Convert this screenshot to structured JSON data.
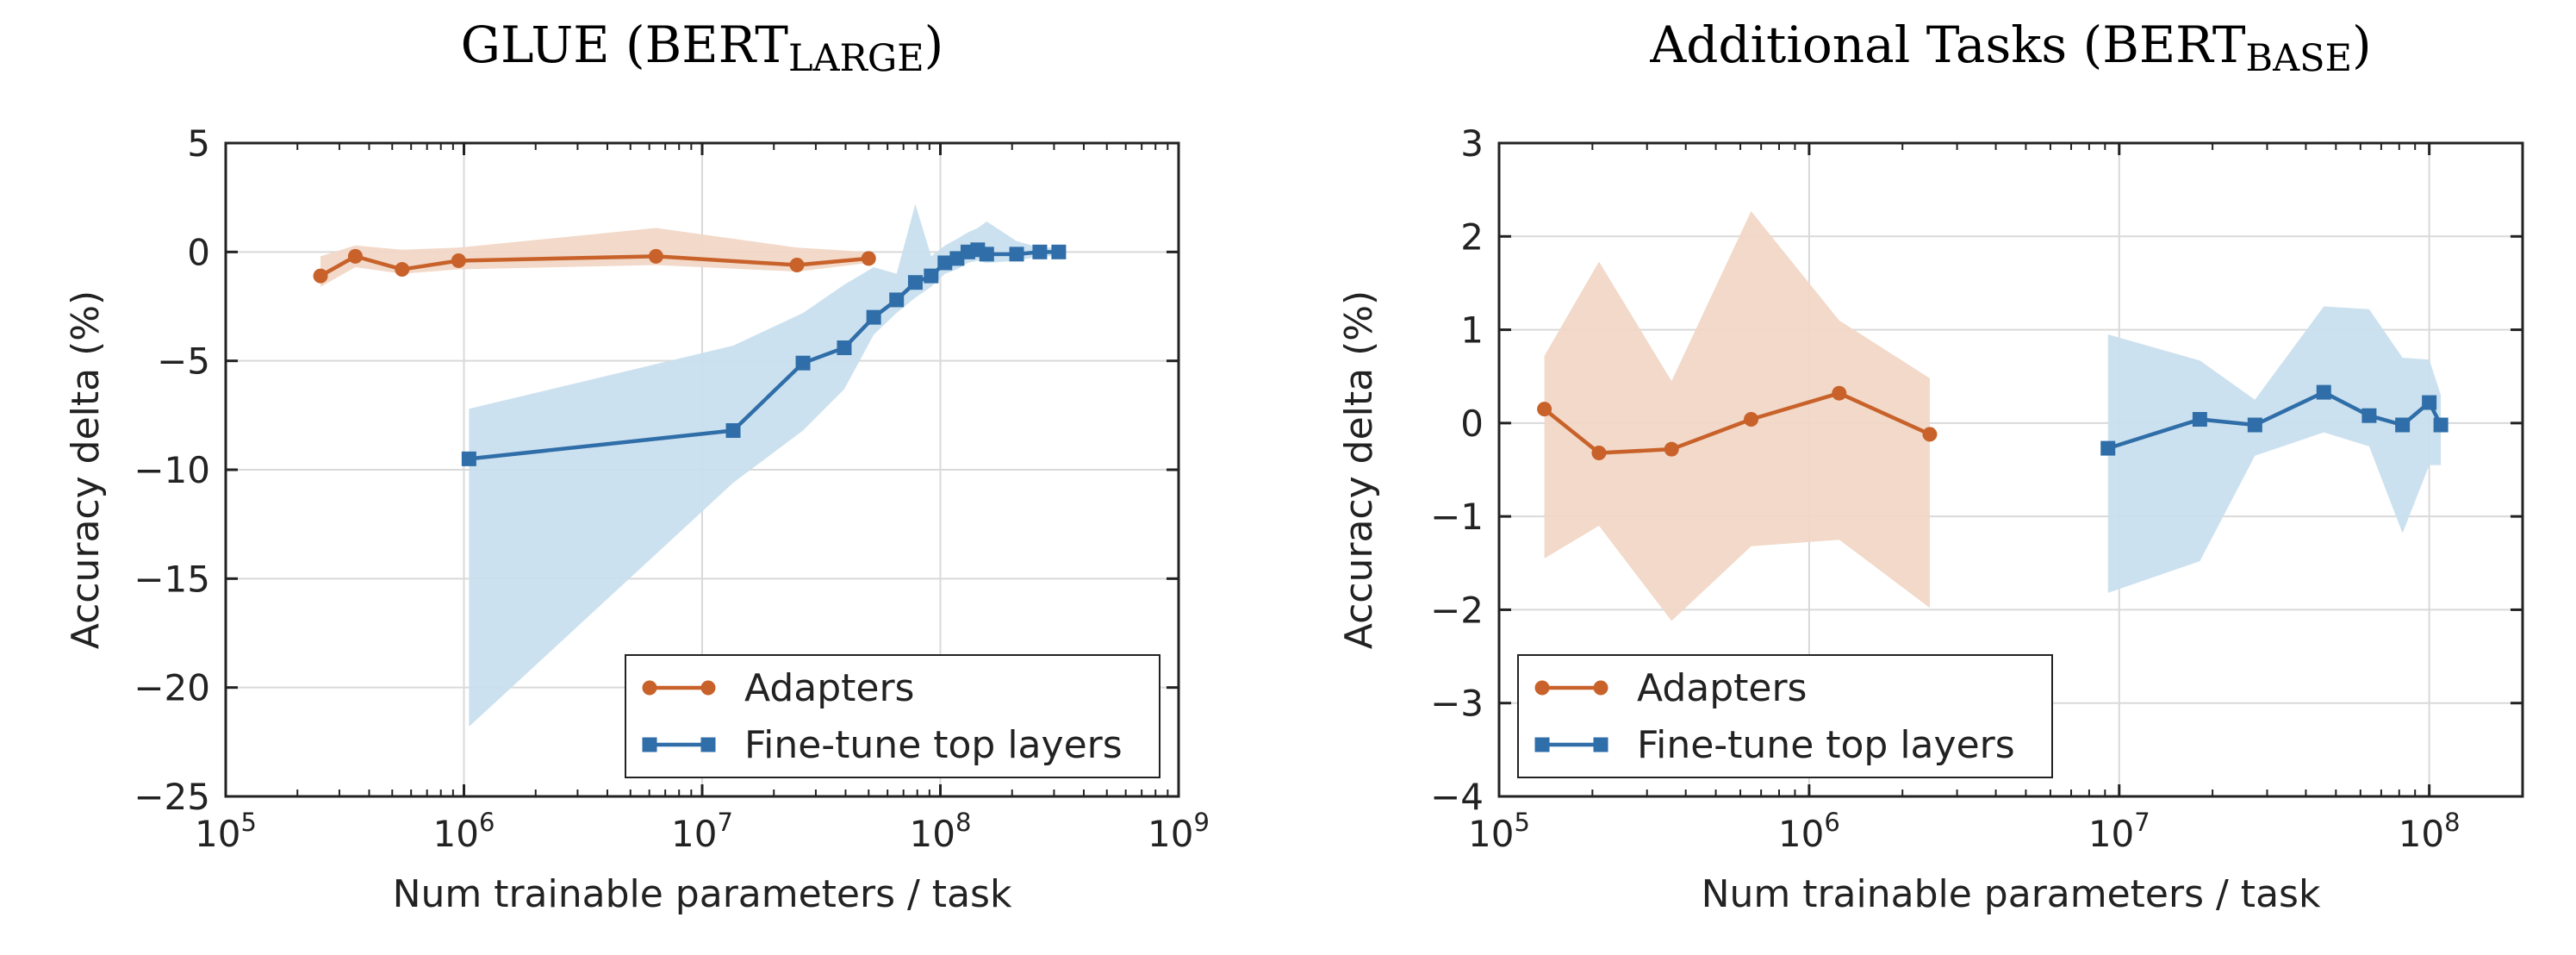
{
  "colors": {
    "adapters": "#c8622a",
    "finetune": "#2f6ea8",
    "adapters_band": "#f1d7c6",
    "finetune_band": "#c9dfee"
  },
  "chart_data": [
    {
      "type": "line",
      "title": "GLUE (BERT",
      "title_subscript": "LARGE",
      "title_suffix": ")",
      "xlabel": "Num trainable parameters / task",
      "ylabel": "Accuracy delta (%)",
      "x_scale": "log",
      "xlim": [
        100000,
        1000000000
      ],
      "ylim": [
        -25,
        5
      ],
      "x_ticks": [
        {
          "value": 100000,
          "base": "10",
          "exp": "5"
        },
        {
          "value": 1000000,
          "base": "10",
          "exp": "6"
        },
        {
          "value": 10000000,
          "base": "10",
          "exp": "7"
        },
        {
          "value": 100000000,
          "base": "10",
          "exp": "8"
        },
        {
          "value": 1000000000,
          "base": "10",
          "exp": "9"
        }
      ],
      "y_ticks": [
        {
          "value": 5,
          "label": "5"
        },
        {
          "value": 0,
          "label": "0"
        },
        {
          "value": -5,
          "label": "−5"
        },
        {
          "value": -10,
          "label": "−10"
        },
        {
          "value": -15,
          "label": "−15"
        },
        {
          "value": -20,
          "label": "−20"
        },
        {
          "value": -25,
          "label": "−25"
        }
      ],
      "grid": true,
      "legend": "bottom-right",
      "series": [
        {
          "name": "Adapters",
          "marker": "circle",
          "x": [
            250000,
            350000,
            550000,
            950000,
            6400000,
            25000000,
            50000000
          ],
          "y": [
            -1.1,
            -0.2,
            -0.8,
            -0.4,
            -0.2,
            -0.6,
            -0.3
          ],
          "band_lower": [
            -1.6,
            -0.7,
            -1.0,
            -0.8,
            -0.6,
            -0.9,
            -0.5
          ],
          "band_upper": [
            -0.2,
            0.3,
            0.1,
            0.2,
            1.1,
            0.2,
            0.0
          ]
        },
        {
          "name": "Fine-tune top layers",
          "marker": "square",
          "x": [
            1050000,
            13500000,
            26500000,
            39500000,
            52500000,
            65500000,
            78500000,
            91500000,
            104500000,
            117500000,
            130500000,
            143500000,
            156500000,
            209000000,
            261500000,
            314000000
          ],
          "y": [
            -9.5,
            -8.2,
            -5.1,
            -4.4,
            -3.0,
            -2.2,
            -1.4,
            -1.1,
            -0.5,
            -0.3,
            0.0,
            0.1,
            -0.1,
            -0.1,
            0.0,
            0.0
          ],
          "band_lower": [
            -21.8,
            -10.6,
            -8.2,
            -6.3,
            -3.8,
            -2.8,
            -2.1,
            -1.6,
            -1.0,
            -0.8,
            -0.5,
            -0.4,
            -0.5,
            -0.4,
            -0.2,
            -0.2
          ],
          "band_upper": [
            -7.2,
            -4.3,
            -2.8,
            -1.5,
            -0.7,
            -1.0,
            2.2,
            -0.2,
            0.3,
            0.6,
            0.9,
            1.1,
            1.4,
            0.5,
            0.2,
            0.2
          ]
        }
      ]
    },
    {
      "type": "line",
      "title": "Additional Tasks (BERT",
      "title_subscript": "BASE",
      "title_suffix": ")",
      "xlabel": "Num trainable parameters / task",
      "ylabel": "Accuracy delta (%)",
      "x_scale": "log",
      "xlim": [
        100000,
        200000000
      ],
      "ylim": [
        -4,
        3
      ],
      "x_ticks": [
        {
          "value": 100000,
          "base": "10",
          "exp": "5"
        },
        {
          "value": 1000000,
          "base": "10",
          "exp": "6"
        },
        {
          "value": 10000000,
          "base": "10",
          "exp": "7"
        },
        {
          "value": 100000000,
          "base": "10",
          "exp": "8"
        }
      ],
      "y_ticks": [
        {
          "value": 3,
          "label": "3"
        },
        {
          "value": 2,
          "label": "2"
        },
        {
          "value": 1,
          "label": "1"
        },
        {
          "value": 0,
          "label": "0"
        },
        {
          "value": -1,
          "label": "−1"
        },
        {
          "value": -2,
          "label": "−2"
        },
        {
          "value": -3,
          "label": "−3"
        },
        {
          "value": -4,
          "label": "−4"
        }
      ],
      "grid": true,
      "legend": "bottom-left",
      "series": [
        {
          "name": "Adapters",
          "marker": "circle",
          "x": [
            140000,
            210000,
            360000,
            650000,
            1250000,
            2450000
          ],
          "y": [
            0.15,
            -0.32,
            -0.28,
            0.04,
            0.32,
            -0.12
          ],
          "band_lower": [
            -1.45,
            -1.1,
            -2.12,
            -1.32,
            -1.25,
            -1.98
          ],
          "band_upper": [
            0.72,
            1.73,
            0.45,
            2.27,
            1.1,
            0.48
          ]
        },
        {
          "name": "Fine-tune top layers",
          "marker": "square",
          "x": [
            9200000,
            18200000,
            27400000,
            45700000,
            64000000,
            82000000,
            100000000,
            109000000
          ],
          "y": [
            -0.27,
            0.04,
            -0.02,
            0.33,
            0.08,
            -0.02,
            0.22,
            -0.02
          ],
          "band_lower": [
            -1.82,
            -1.48,
            -0.35,
            -0.1,
            -0.25,
            -1.18,
            -0.45,
            -0.45
          ],
          "band_upper": [
            0.95,
            0.67,
            0.25,
            1.25,
            1.22,
            0.7,
            0.68,
            0.3
          ]
        }
      ]
    }
  ]
}
